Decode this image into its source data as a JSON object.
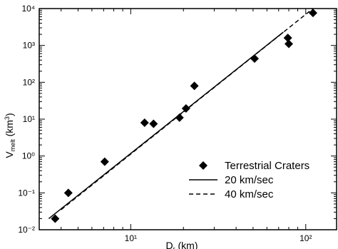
{
  "chart_data": {
    "type": "scatter",
    "x_label": {
      "main": "D",
      "sub": "r",
      "rest": " (km)"
    },
    "y_label": {
      "main": "V",
      "sub": "melt",
      "rest": " (km",
      "sup": "3",
      "end": ")"
    },
    "log_x": true,
    "log_y": true,
    "xlim": [
      3,
      150
    ],
    "ylim": [
      0.01,
      10000
    ],
    "xticks": [
      {
        "value": 10,
        "label": "10¹"
      },
      {
        "value": 100,
        "label": "10²"
      }
    ],
    "yticks": [
      {
        "value": 0.01,
        "label": "10⁻²"
      },
      {
        "value": 0.1,
        "label": "10⁻¹"
      },
      {
        "value": 1,
        "label": "10⁰"
      },
      {
        "value": 10,
        "label": "10¹"
      },
      {
        "value": 100,
        "label": "10²"
      },
      {
        "value": 1000,
        "label": "10³"
      },
      {
        "value": 10000,
        "label": "10⁴"
      }
    ],
    "legend": "lower right",
    "series": [
      {
        "name": "Terrestrial Craters",
        "color": "#000000",
        "marker": "diamond",
        "x": [
          3.7,
          4.4,
          7.1,
          12,
          13.5,
          19,
          20.7,
          23.1,
          51,
          79,
          80,
          110
        ],
        "values": [
          0.02,
          0.1,
          0.7,
          8,
          7.5,
          11,
          19.5,
          80,
          440,
          1600,
          1100,
          7600
        ]
      },
      {
        "name": "20 km/sec",
        "color": "#000000",
        "line": "solid",
        "x": [
          3.4,
          74.5
        ],
        "values": [
          0.02,
          2300
        ]
      },
      {
        "name": "40 km/sec",
        "color": "#000000",
        "line": "dashed",
        "x": [
          4,
          110
        ],
        "values": [
          0.035,
          10000
        ]
      }
    ]
  }
}
